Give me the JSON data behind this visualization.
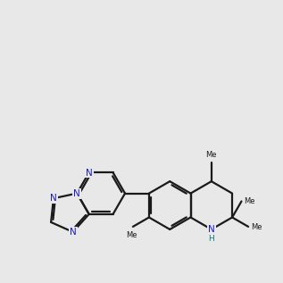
{
  "bg_color": "#e8e8e8",
  "bond_color": "#1a1a1a",
  "N_color": "#1a1acc",
  "NH_color": "#008080",
  "lw": 1.6,
  "fs": 7.0,
  "dbl_off": 0.055,
  "atoms": {
    "note": "coords in axis units 0-10, read from 900x900 zoomed image (divide px by 90, flip y as 10-py/90)"
  }
}
